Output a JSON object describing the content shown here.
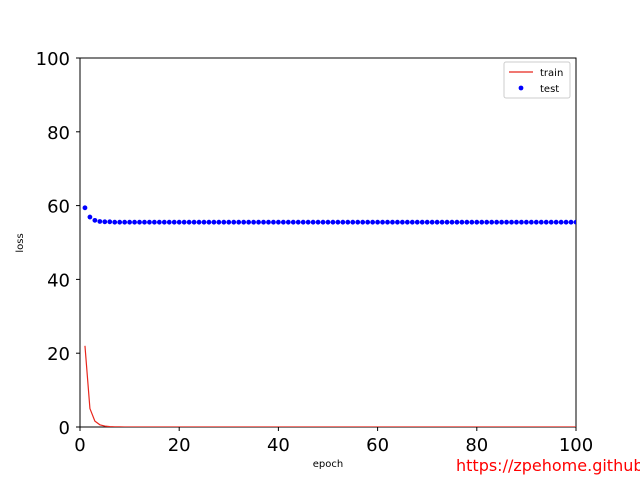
{
  "chart_data": {
    "type": "line",
    "xlabel": "epoch",
    "ylabel": "loss",
    "xlim": [
      0,
      100
    ],
    "ylim": [
      0,
      100
    ],
    "x_ticks": [
      "0",
      "20",
      "40",
      "60",
      "80",
      "100"
    ],
    "y_ticks": [
      "0",
      "20",
      "40",
      "60",
      "80",
      "100"
    ],
    "grid": false,
    "legend_position": "top-right",
    "series": [
      {
        "name": "train",
        "style": "line",
        "color": "#e8261c",
        "x": [
          1,
          2,
          3,
          4,
          5,
          6,
          7,
          8,
          9,
          10,
          11,
          12,
          13,
          14,
          15,
          20,
          30,
          40,
          50,
          60,
          70,
          80,
          90,
          100
        ],
        "y": [
          22,
          5,
          1.6,
          0.6,
          0.25,
          0.1,
          0.05,
          0.03,
          0.02,
          0.01,
          0.01,
          0.01,
          0,
          0,
          0,
          0,
          0,
          0,
          0,
          0,
          0,
          0,
          0,
          0
        ]
      },
      {
        "name": "test",
        "style": "scatter",
        "color": "#0000ff",
        "x": [
          1,
          2,
          3,
          4,
          5,
          6,
          7,
          8,
          9,
          10,
          11,
          12,
          13,
          14,
          15,
          16,
          17,
          18,
          19,
          20,
          21,
          22,
          23,
          24,
          25,
          26,
          27,
          28,
          29,
          30,
          31,
          32,
          33,
          34,
          35,
          36,
          37,
          38,
          39,
          40,
          41,
          42,
          43,
          44,
          45,
          46,
          47,
          48,
          49,
          50,
          51,
          52,
          53,
          54,
          55,
          56,
          57,
          58,
          59,
          60,
          61,
          62,
          63,
          64,
          65,
          66,
          67,
          68,
          69,
          70,
          71,
          72,
          73,
          74,
          75,
          76,
          77,
          78,
          79,
          80,
          81,
          82,
          83,
          84,
          85,
          86,
          87,
          88,
          89,
          90,
          91,
          92,
          93,
          94,
          95,
          96,
          97,
          98,
          99,
          100
        ],
        "y": [
          59.4,
          56.9,
          56.0,
          55.7,
          55.6,
          55.6,
          55.5,
          55.5,
          55.5,
          55.5,
          55.5,
          55.5,
          55.5,
          55.5,
          55.5,
          55.5,
          55.5,
          55.5,
          55.5,
          55.5,
          55.5,
          55.5,
          55.5,
          55.5,
          55.5,
          55.5,
          55.5,
          55.5,
          55.5,
          55.5,
          55.5,
          55.5,
          55.5,
          55.5,
          55.5,
          55.5,
          55.5,
          55.5,
          55.5,
          55.5,
          55.5,
          55.5,
          55.5,
          55.5,
          55.5,
          55.5,
          55.5,
          55.5,
          55.5,
          55.5,
          55.5,
          55.5,
          55.5,
          55.5,
          55.5,
          55.5,
          55.5,
          55.5,
          55.5,
          55.5,
          55.5,
          55.5,
          55.5,
          55.5,
          55.5,
          55.5,
          55.5,
          55.5,
          55.5,
          55.5,
          55.5,
          55.5,
          55.5,
          55.5,
          55.5,
          55.5,
          55.5,
          55.5,
          55.5,
          55.5,
          55.5,
          55.5,
          55.5,
          55.5,
          55.5,
          55.5,
          55.5,
          55.5,
          55.5,
          55.5,
          55.5,
          55.5,
          55.5,
          55.5,
          55.5,
          55.5,
          55.5,
          55.5,
          55.5,
          55.5
        ]
      }
    ]
  },
  "watermark": {
    "text": "https://zpehome.github.io",
    "color": "#ff0000"
  }
}
